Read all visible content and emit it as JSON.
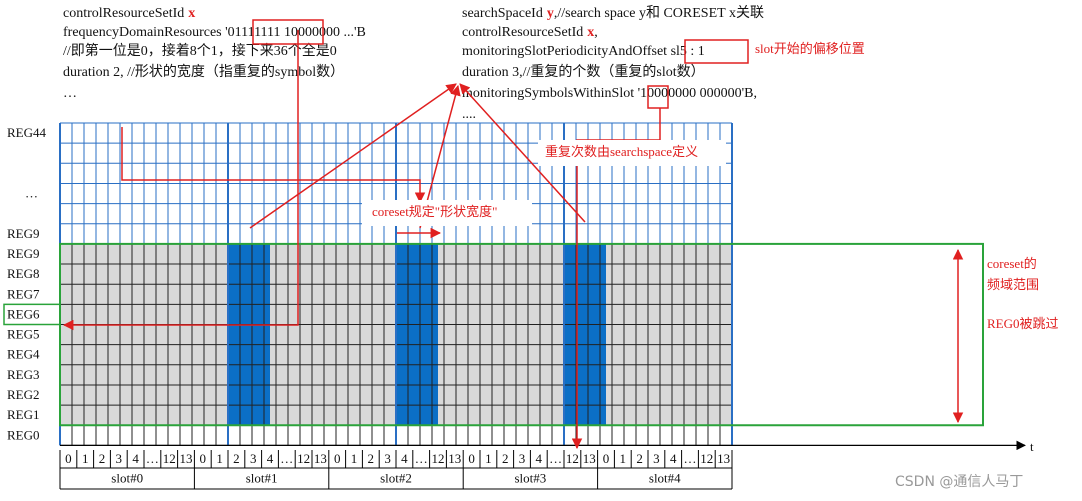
{
  "left_note": {
    "lines": [
      [
        {
          "text": "controlResourceSetId"
        },
        {
          "text": "x",
          "color": "#e02020"
        }
      ],
      [
        {
          "text": "frequencyDomainResources '01111111 10000000 ...'B"
        }
      ],
      [
        {
          "text": "//即第一位是0，接着8个1，接下来36个全是0"
        }
      ],
      [
        {
          "text": "duration 2, //形状的宽度（指重复的symbol数）"
        }
      ],
      [
        {
          "text": "…"
        }
      ]
    ]
  },
  "right_note": {
    "lines": [
      [
        {
          "text": "searchSpaceId"
        },
        {
          "text": "y",
          "color": "#e02020"
        },
        {
          "text": ",//search space y和 CORESET x关联"
        }
      ],
      [
        {
          "text": "controlResourceSetId"
        },
        {
          "text": "x",
          "color": "#e02020"
        },
        {
          "text": ","
        }
      ],
      [
        {
          "text": "monitoringSlotPeriodicityAndOffset sl5 : 1"
        }
      ],
      [
        {
          "text": "duration 3,//重复的个数（重复的slot数）"
        }
      ],
      [
        {
          "text": "monitoringSymbolsWithinSlot '10000000 000000'B,"
        }
      ],
      [
        {
          "text": "...."
        }
      ]
    ]
  },
  "row_labels": [
    "REG44",
    null,
    null,
    "…",
    null,
    "REG9",
    "REG9",
    "REG8",
    "REG7",
    "REG6",
    "REG5",
    "REG4",
    "REG3",
    "REG2",
    "REG1",
    "REG0"
  ],
  "slots": [
    {
      "name": "slot#0",
      "symbols": [
        "0",
        "1",
        "2",
        "3",
        "4",
        "…",
        "12",
        "13"
      ]
    },
    {
      "name": "slot#1",
      "symbols": [
        "0",
        "1",
        "2",
        "3",
        "4",
        "…",
        "12",
        "13"
      ]
    },
    {
      "name": "slot#2",
      "symbols": [
        "0",
        "1",
        "2",
        "3",
        "4",
        "…",
        "12",
        "13"
      ]
    },
    {
      "name": "slot#3",
      "symbols": [
        "0",
        "1",
        "2",
        "3",
        "4",
        "…",
        "12",
        "13"
      ]
    },
    {
      "name": "slot#4",
      "symbols": [
        "0",
        "1",
        "2",
        "3",
        "4",
        "…",
        "12",
        "13"
      ]
    }
  ],
  "axis_label": "t",
  "annotations": {
    "slot_offset": "slot开始的偏移位置",
    "repeat": "重复次数由searchspace定义",
    "width": "coreset规定\"形状宽度\"",
    "range_line1": "coreset的",
    "range_line2": "频域范围",
    "skip": "REG0被跳过"
  },
  "watermark": "CSDN @通信人马丁"
}
